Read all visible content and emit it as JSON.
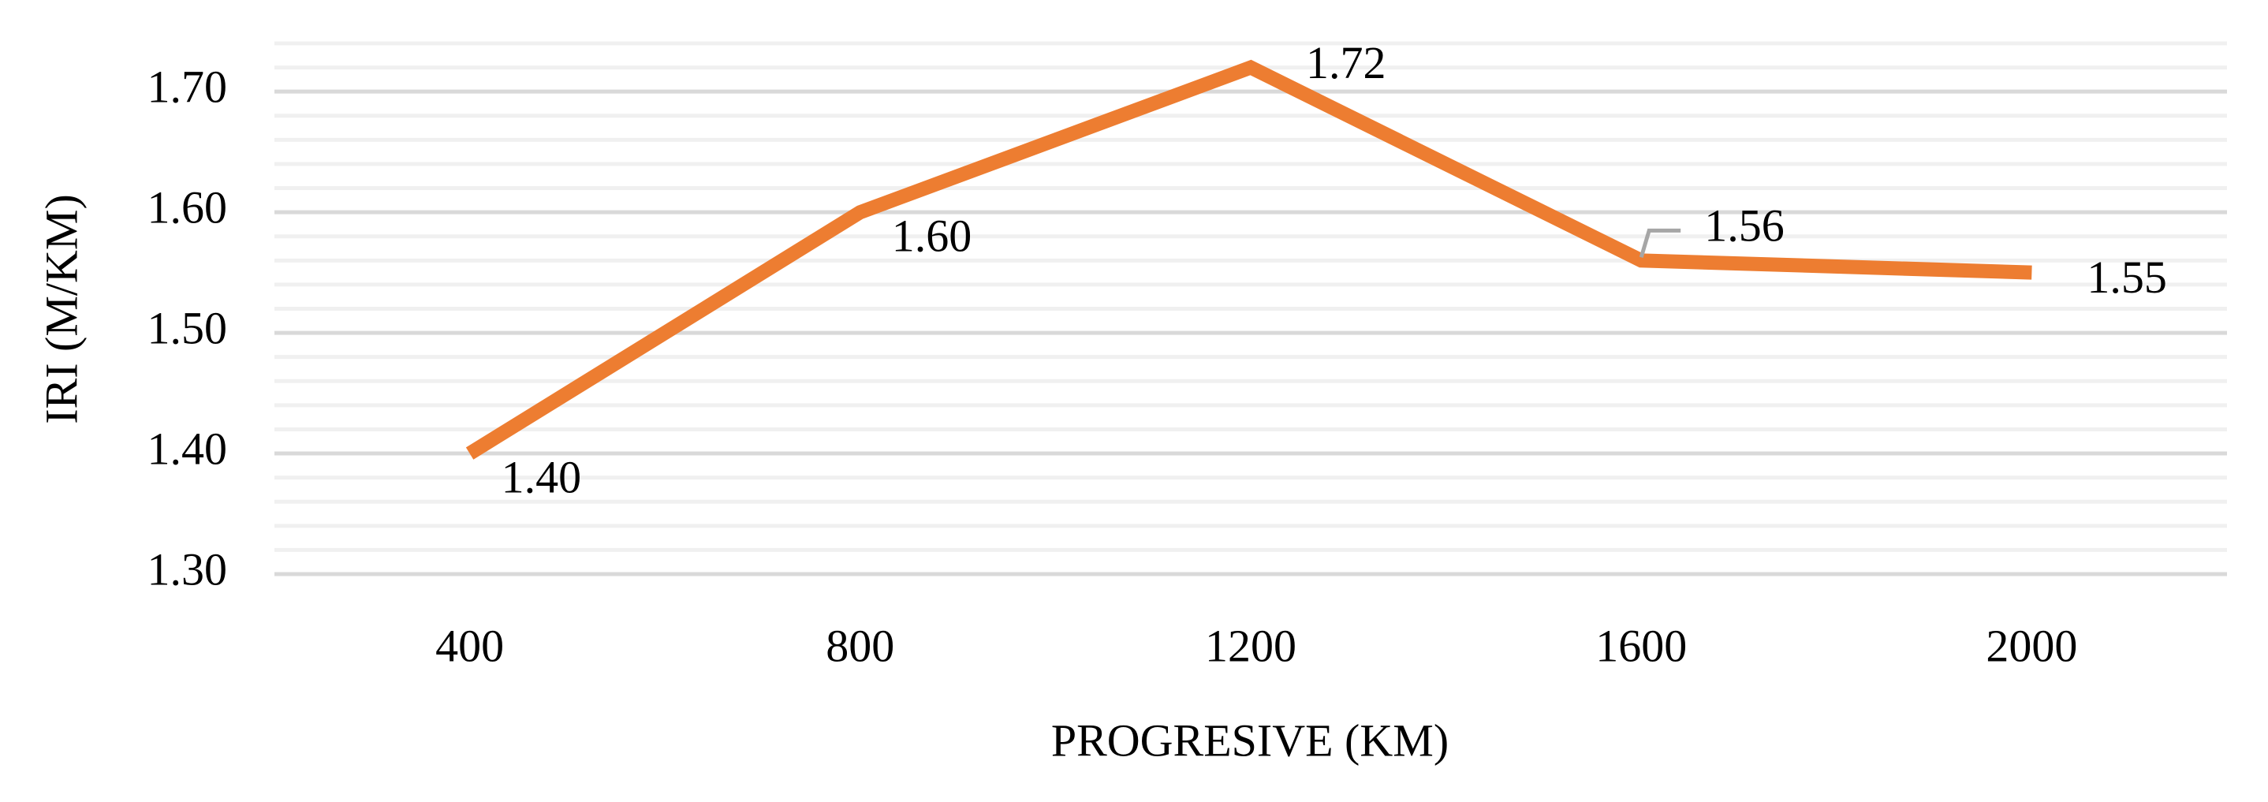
{
  "chart_data": {
    "type": "line",
    "x_label": "PROGRESIVE (KM)",
    "y_label": "IRI (M/KM)",
    "categories": [
      "400",
      "800",
      "1200",
      "1600",
      "2000"
    ],
    "values": [
      1.4,
      1.6,
      1.72,
      1.56,
      1.55
    ],
    "value_labels": [
      "1.40",
      "1.60",
      "1.72",
      "1.56",
      "1.55"
    ],
    "color": "#ed7d31",
    "ylim": [
      1.3,
      1.74
    ],
    "yticks": [
      {
        "value": 1.3,
        "label": "1.30"
      },
      {
        "value": 1.4,
        "label": "1.40"
      },
      {
        "value": 1.5,
        "label": "1.50"
      },
      {
        "value": 1.6,
        "label": "1.60"
      },
      {
        "value": 1.7,
        "label": "1.70"
      }
    ],
    "grid": true
  }
}
